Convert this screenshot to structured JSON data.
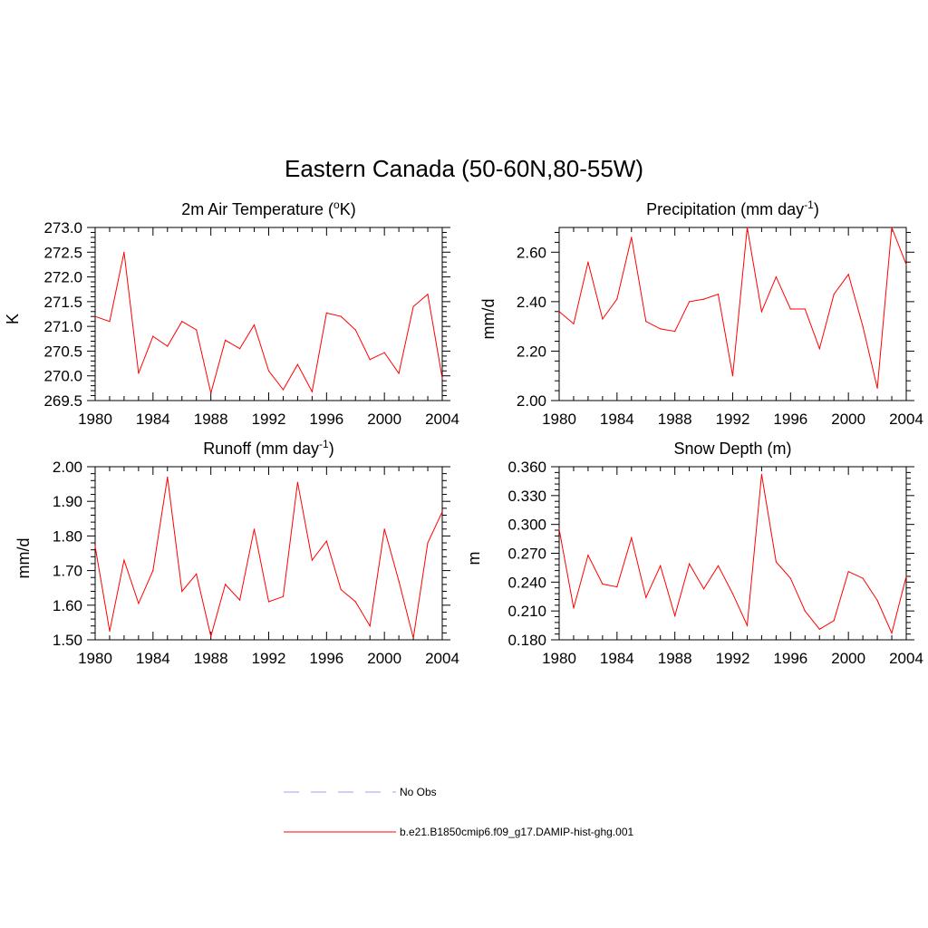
{
  "figure": {
    "title": "Eastern Canada (50-60N,80-55W)"
  },
  "chart_data": [
    {
      "type": "line",
      "title": "2m Air Temperature (",
      "title_sup": "o",
      "title_post": "K)",
      "ylabel": "K",
      "xlim": [
        1980,
        2004
      ],
      "ylim": [
        269.5,
        273.0
      ],
      "xticks": [
        "1980",
        "1984",
        "1988",
        "1992",
        "1996",
        "2000",
        "2004"
      ],
      "yticks": [
        "269.5",
        "270.0",
        "270.5",
        "271.0",
        "271.5",
        "272.0",
        "272.5",
        "273.0"
      ],
      "x": [
        1980,
        1981,
        1982,
        1983,
        1984,
        1985,
        1986,
        1987,
        1988,
        1989,
        1990,
        1991,
        1992,
        1993,
        1994,
        1995,
        1996,
        1997,
        1998,
        1999,
        2000,
        2001,
        2002,
        2003,
        2004
      ],
      "series": [
        {
          "name": "b.e21.B1850cmip6.f09_g17.DAMIP-hist-ghg.001",
          "values": [
            271.2,
            271.1,
            272.5,
            270.05,
            270.8,
            270.6,
            271.1,
            270.93,
            269.65,
            270.72,
            270.55,
            271.03,
            270.1,
            269.72,
            270.23,
            269.68,
            271.27,
            271.2,
            270.93,
            270.33,
            270.47,
            270.05,
            271.4,
            271.65,
            269.95
          ]
        }
      ]
    },
    {
      "type": "line",
      "title": "Precipitation (mm day",
      "title_sup": "-1",
      "title_post": ")",
      "ylabel": "mm/d",
      "xlim": [
        1980,
        2004
      ],
      "ylim": [
        2.0,
        2.7
      ],
      "xticks": [
        "1980",
        "1984",
        "1988",
        "1992",
        "1996",
        "2000",
        "2004"
      ],
      "yticks": [
        "2.00",
        "2.20",
        "2.40",
        "2.60"
      ],
      "x": [
        1980,
        1981,
        1982,
        1983,
        1984,
        1985,
        1986,
        1987,
        1988,
        1989,
        1990,
        1991,
        1992,
        1993,
        1994,
        1995,
        1996,
        1997,
        1998,
        1999,
        2000,
        2001,
        2002,
        2003,
        2004
      ],
      "series": [
        {
          "name": "b.e21.B1850cmip6.f09_g17.DAMIP-hist-ghg.001",
          "values": [
            2.36,
            2.31,
            2.56,
            2.33,
            2.41,
            2.66,
            2.32,
            2.29,
            2.28,
            2.4,
            2.41,
            2.43,
            2.1,
            2.7,
            2.36,
            2.5,
            2.37,
            2.37,
            2.21,
            2.43,
            2.51,
            2.3,
            2.05,
            2.7,
            2.55
          ]
        }
      ]
    },
    {
      "type": "line",
      "title": "Runoff (mm day",
      "title_sup": "-1",
      "title_post": ")",
      "ylabel": "mm/d",
      "xlim": [
        1980,
        2004
      ],
      "ylim": [
        1.5,
        2.0
      ],
      "xticks": [
        "1980",
        "1984",
        "1988",
        "1992",
        "1996",
        "2000",
        "2004"
      ],
      "yticks": [
        "1.50",
        "1.60",
        "1.70",
        "1.80",
        "1.90",
        "2.00"
      ],
      "x": [
        1980,
        1981,
        1982,
        1983,
        1984,
        1985,
        1986,
        1987,
        1988,
        1989,
        1990,
        1991,
        1992,
        1993,
        1994,
        1995,
        1996,
        1997,
        1998,
        1999,
        2000,
        2001,
        2002,
        2003,
        2004
      ],
      "series": [
        {
          "name": "b.e21.B1850cmip6.f09_g17.DAMIP-hist-ghg.001",
          "values": [
            1.77,
            1.525,
            1.73,
            1.605,
            1.7,
            1.97,
            1.64,
            1.69,
            1.51,
            1.66,
            1.615,
            1.82,
            1.61,
            1.625,
            1.955,
            1.73,
            1.785,
            1.645,
            1.61,
            1.54,
            1.82,
            1.67,
            1.505,
            1.78,
            1.87
          ]
        }
      ]
    },
    {
      "type": "line",
      "title": "Snow Depth (m)",
      "title_sup": "",
      "title_post": "",
      "ylabel": "m",
      "xlim": [
        1980,
        2004
      ],
      "ylim": [
        0.18,
        0.36
      ],
      "xticks": [
        "1980",
        "1984",
        "1988",
        "1992",
        "1996",
        "2000",
        "2004"
      ],
      "yticks": [
        "0.180",
        "0.210",
        "0.240",
        "0.270",
        "0.300",
        "0.330",
        "0.360"
      ],
      "x": [
        1980,
        1981,
        1982,
        1983,
        1984,
        1985,
        1986,
        1987,
        1988,
        1989,
        1990,
        1991,
        1992,
        1993,
        1994,
        1995,
        1996,
        1997,
        1998,
        1999,
        2000,
        2001,
        2002,
        2003,
        2004
      ],
      "series": [
        {
          "name": "b.e21.B1850cmip6.f09_g17.DAMIP-hist-ghg.001",
          "values": [
            0.295,
            0.213,
            0.268,
            0.238,
            0.235,
            0.286,
            0.224,
            0.257,
            0.205,
            0.259,
            0.233,
            0.257,
            0.228,
            0.195,
            0.352,
            0.261,
            0.244,
            0.21,
            0.191,
            0.2,
            0.251,
            0.244,
            0.221,
            0.187,
            0.246
          ]
        }
      ]
    }
  ],
  "legend": {
    "items": [
      {
        "label": "No Obs",
        "style": "dashed",
        "color": "#b4b4f0"
      },
      {
        "label": "b.e21.B1850cmip6.f09_g17.DAMIP-hist-ghg.001",
        "style": "solid",
        "color": "#ff0000"
      }
    ]
  },
  "colors": {
    "series_line": "#ff0000",
    "no_obs_line": "#b4b4f0"
  }
}
